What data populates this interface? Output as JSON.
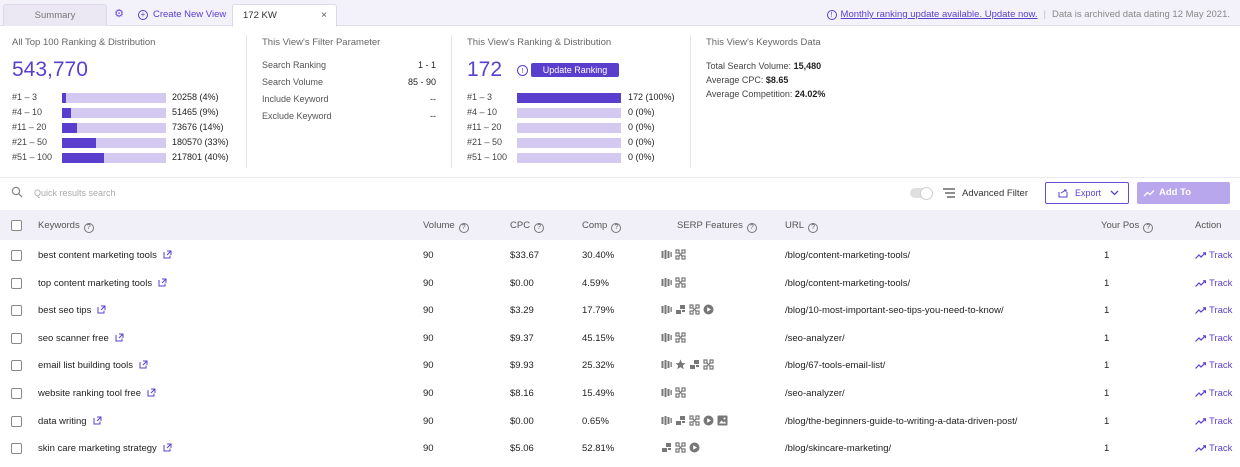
{
  "tabs": {
    "summary": "Summary",
    "create": "Create New View",
    "active": "172 KW",
    "close": "×"
  },
  "notice": {
    "link": "Monthly ranking update available. Update now.",
    "archived": "Data is archived data dating 12 May 2021."
  },
  "overall": {
    "title": "All Top 100 Ranking & Distribution",
    "total": "543,770",
    "rows": [
      {
        "label": "#1 – 3",
        "value": "20258 (4%)",
        "pct": 4
      },
      {
        "label": "#4 – 10",
        "value": "51465 (9%)",
        "pct": 9
      },
      {
        "label": "#11 – 20",
        "value": "73676 (14%)",
        "pct": 14
      },
      {
        "label": "#21 – 50",
        "value": "180570 (33%)",
        "pct": 33
      },
      {
        "label": "#51 – 100",
        "value": "217801 (40%)",
        "pct": 40
      }
    ]
  },
  "filter": {
    "title": "This View's Filter Parameter",
    "rows": [
      {
        "label": "Search Ranking",
        "value": "1 - 1"
      },
      {
        "label": "Search Volume",
        "value": "85 - 90"
      },
      {
        "label": "Include Keyword",
        "value": "--"
      },
      {
        "label": "Exclude Keyword",
        "value": "--"
      }
    ]
  },
  "view": {
    "title": "This View's Ranking & Distribution",
    "total": "172",
    "update_button": "Update Ranking",
    "rows": [
      {
        "label": "#1 – 3",
        "value": "172 (100%)",
        "pct": 100
      },
      {
        "label": "#4 – 10",
        "value": "0 (0%)",
        "pct": 0
      },
      {
        "label": "#11 – 20",
        "value": "0 (0%)",
        "pct": 0
      },
      {
        "label": "#21 – 50",
        "value": "0 (0%)",
        "pct": 0
      },
      {
        "label": "#51 – 100",
        "value": "0 (0%)",
        "pct": 0
      }
    ]
  },
  "kwdata": {
    "title": "This View's Keywords Data",
    "volume_label": "Total Search Volume:",
    "volume": "15,480",
    "cpc_label": "Average CPC:",
    "cpc": "$8.65",
    "comp_label": "Average Competition:",
    "comp": "24.02%"
  },
  "toolbar": {
    "search_placeholder": "Quick results search",
    "advanced_filter": "Advanced Filter",
    "export": "Export",
    "add_tracking": "Add To Tracking"
  },
  "table": {
    "headers": {
      "keywords": "Keywords",
      "volume": "Volume",
      "cpc": "CPC",
      "comp": "Comp",
      "serp": "SERP Features",
      "url": "URL",
      "pos": "Your Pos",
      "action": "Action"
    },
    "track_label": "Track",
    "rows": [
      {
        "keyword": "best content marketing tools",
        "volume": "90",
        "cpc": "$33.67",
        "comp": "30.40%",
        "serp": [
          "reviews-icon",
          "sitelinks-icon"
        ],
        "url": "/blog/content-marketing-tools/",
        "pos": "1"
      },
      {
        "keyword": "top content marketing tools",
        "volume": "90",
        "cpc": "$0.00",
        "comp": "4.59%",
        "serp": [
          "reviews-icon",
          "sitelinks-icon"
        ],
        "url": "/blog/content-marketing-tools/",
        "pos": "1"
      },
      {
        "keyword": "best seo tips",
        "volume": "90",
        "cpc": "$3.29",
        "comp": "17.79%",
        "serp": [
          "reviews-icon",
          "people-also-ask-icon",
          "sitelinks-icon",
          "video-icon"
        ],
        "url": "/blog/10-most-important-seo-tips-you-need-to-know/",
        "pos": "1"
      },
      {
        "keyword": "seo scanner free",
        "volume": "90",
        "cpc": "$9.37",
        "comp": "45.15%",
        "serp": [
          "reviews-icon",
          "sitelinks-icon"
        ],
        "url": "/seo-analyzer/",
        "pos": "1"
      },
      {
        "keyword": "email list building tools",
        "volume": "90",
        "cpc": "$9.93",
        "comp": "25.32%",
        "serp": [
          "reviews-icon",
          "star-icon",
          "people-also-ask-icon",
          "sitelinks-icon"
        ],
        "url": "/blog/67-tools-email-list/",
        "pos": "1"
      },
      {
        "keyword": "website ranking tool free",
        "volume": "90",
        "cpc": "$8.16",
        "comp": "15.49%",
        "serp": [
          "reviews-icon",
          "sitelinks-icon"
        ],
        "url": "/seo-analyzer/",
        "pos": "1"
      },
      {
        "keyword": "data writing",
        "volume": "90",
        "cpc": "$0.00",
        "comp": "0.65%",
        "serp": [
          "reviews-icon",
          "people-also-ask-icon",
          "sitelinks-icon",
          "video-icon",
          "image-icon"
        ],
        "url": "/blog/the-beginners-guide-to-writing-a-data-driven-post/",
        "pos": "1"
      },
      {
        "keyword": "skin care marketing strategy",
        "volume": "90",
        "cpc": "$5.06",
        "comp": "52.81%",
        "serp": [
          "people-also-ask-icon",
          "sitelinks-icon",
          "video-icon"
        ],
        "url": "/blog/skincare-marketing/",
        "pos": "1"
      }
    ]
  }
}
